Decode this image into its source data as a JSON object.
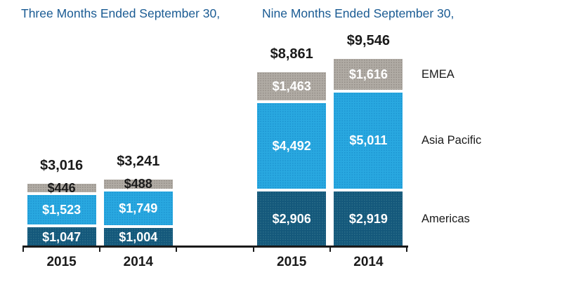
{
  "chart_data": {
    "type": "bar",
    "subtype": "stacked",
    "legend_position": "right",
    "grid": false,
    "series_legend": [
      {
        "name": "EMEA",
        "color": "#B0ABA4",
        "dot_color": "rgba(92,86,80,0.35)"
      },
      {
        "name": "Asia Pacific",
        "color": "#29A8E0",
        "dot_color": "rgba(0,100,175,0.30)"
      },
      {
        "name": "Americas",
        "color": "#14587B",
        "dot_color": "rgba(150,210,195,0.18)"
      }
    ],
    "groups": [
      {
        "title": "Three Months Ended September 30,",
        "bars": [
          {
            "category": "2015",
            "total": 3016,
            "total_label": "$3,016",
            "segments": [
              {
                "name": "Americas",
                "value": 1047,
                "label": "$1,047"
              },
              {
                "name": "Asia Pacific",
                "value": 1523,
                "label": "$1,523"
              },
              {
                "name": "EMEA",
                "value": 446,
                "label": "$446"
              }
            ]
          },
          {
            "category": "2014",
            "total": 3241,
            "total_label": "$3,241",
            "segments": [
              {
                "name": "Americas",
                "value": 1004,
                "label": "$1,004"
              },
              {
                "name": "Asia Pacific",
                "value": 1749,
                "label": "$1,749"
              },
              {
                "name": "EMEA",
                "value": 488,
                "label": "$488"
              }
            ]
          }
        ]
      },
      {
        "title": "Nine Months Ended September 30,",
        "bars": [
          {
            "category": "2015",
            "total": 8861,
            "total_label": "$8,861",
            "segments": [
              {
                "name": "Americas",
                "value": 2906,
                "label": "$2,906"
              },
              {
                "name": "Asia Pacific",
                "value": 4492,
                "label": "$4,492"
              },
              {
                "name": "EMEA",
                "value": 1463,
                "label": "$1,463"
              }
            ]
          },
          {
            "category": "2014",
            "total": 9546,
            "total_label": "$9,546",
            "segments": [
              {
                "name": "Americas",
                "value": 2919,
                "label": "$2,919"
              },
              {
                "name": "Asia Pacific",
                "value": 5011,
                "label": "$5,011"
              },
              {
                "name": "EMEA",
                "value": 1616,
                "label": "$1,616"
              }
            ]
          }
        ]
      }
    ],
    "x_categories": [
      "2015",
      "2014",
      "2015",
      "2014"
    ],
    "text_color": "#1a1a1a",
    "title_color": "#1A5B93",
    "axis_color": "#1a1a1a"
  }
}
